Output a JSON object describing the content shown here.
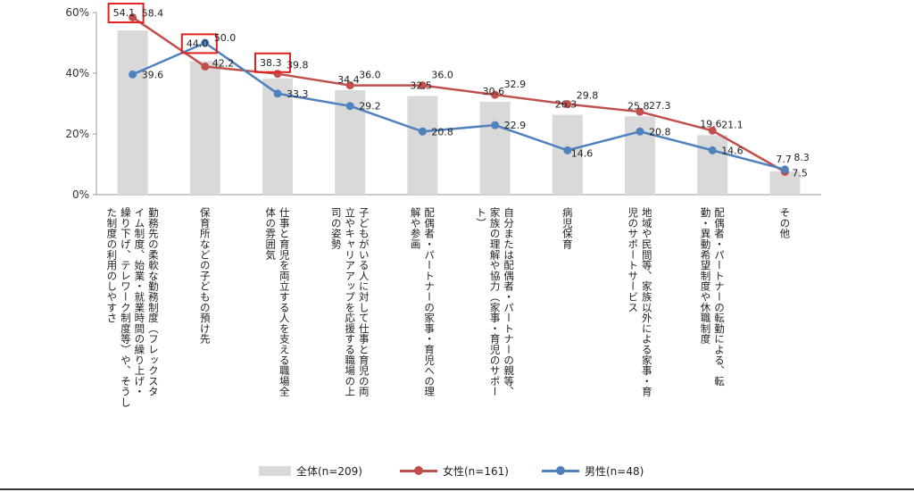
{
  "colors": {
    "bar": "#d9d9d9",
    "female": "#c0504d",
    "male": "#4f81bd",
    "highlight_box": "#e02020",
    "axis_text": "#333333"
  },
  "legend": {
    "all": "全体(n=209)",
    "female": "女性(n=161)",
    "male": "男性(n=48)"
  },
  "chart_data": {
    "type": "bar",
    "ylim": [
      0,
      60
    ],
    "yticks": [
      "0%",
      "20%",
      "40%",
      "60%"
    ],
    "grid": false,
    "legend_position": "bottom",
    "categories": [
      "勤務先の柔軟な勤務制度（フレックスタイム制度、始業・就業時間の繰り上げ・繰り下げ、テレワーク制度等）や、そうした制度の利用のしやすさ",
      "保育所などの子どもの預け先",
      "仕事と育児を両立する人を支える職場全体の雰囲気",
      "子どもがいる人に対して仕事と育児の両立やキャリアアップを応援する職場の上司の姿勢",
      "配偶者・パートナーの家事・育児への理解や参画",
      "自分または配偶者・パートナーの親等、家族の理解や協力（家事・育児のサポート）",
      "病児保育",
      "地域や民間等、家族以外による家事・育児のサポートサービス",
      "配偶者・パートナーの転勤による、転勤・異動希望制度や休職制度",
      "その他"
    ],
    "category_lines": [
      [
        "勤務先の柔軟な勤務制度（フレックスタ",
        "イム制度、始業・就業時間の繰り上げ・",
        "繰り下げ、テレワーク制度等）や、そうし",
        "た制度の利用のしやすさ"
      ],
      [
        "保育所などの子どもの預け先"
      ],
      [
        "仕事と育児を両立する人を支える職場全",
        "体の雰囲気"
      ],
      [
        "子どもがいる人に対して仕事と育児の両",
        "立やキャリアアップを応援する職場の上",
        "司の姿勢"
      ],
      [
        "配偶者・パートナーの家事・育児への理",
        "解や参画"
      ],
      [
        "自分または配偶者・パートナーの親等、",
        "家族の理解や協力（家事・育児のサポー",
        "ト）"
      ],
      [
        "病児保育"
      ],
      [
        "地域や民間等、家族以外による家事・育",
        "児のサポートサービス"
      ],
      [
        "配偶者・パートナーの転勤による、転",
        "勤・異動希望制度や休職制度"
      ],
      [
        "その他"
      ]
    ],
    "series": [
      {
        "name": "全体(n=209)",
        "kind": "bar",
        "values": [
          54.1,
          44.0,
          38.3,
          34.4,
          32.5,
          30.6,
          26.3,
          25.8,
          19.6,
          7.7
        ]
      },
      {
        "name": "女性(n=161)",
        "kind": "line",
        "values": [
          58.4,
          42.2,
          39.8,
          36.0,
          36.0,
          32.9,
          29.8,
          27.3,
          21.1,
          7.5
        ]
      },
      {
        "name": "男性(n=48)",
        "kind": "line",
        "values": [
          39.6,
          50.0,
          33.3,
          29.2,
          20.8,
          22.9,
          14.6,
          20.8,
          14.6,
          8.3
        ]
      }
    ],
    "highlighted_bar_indices": [
      0,
      1,
      2
    ]
  }
}
